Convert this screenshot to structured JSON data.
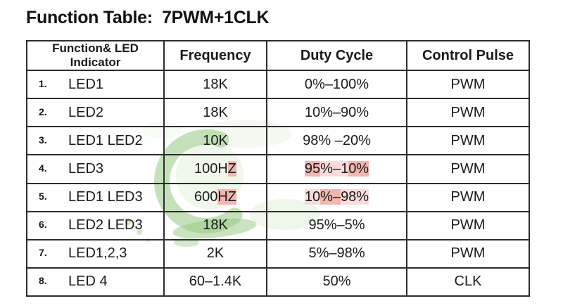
{
  "title": "Function Table:  7PWM+1CLK",
  "table": {
    "headers": [
      "Function& LED Indicator",
      "Frequency",
      "Duty Cycle",
      "Control Pulse"
    ],
    "rows": [
      {
        "num": "1.",
        "function": "LED1",
        "frequency": "18K",
        "duty": "0%–100%",
        "pulse": "PWM"
      },
      {
        "num": "2.",
        "function": "LED2",
        "frequency": "18K",
        "duty": "10%–90%",
        "pulse": "PWM"
      },
      {
        "num": "3.",
        "function": "LED1 LED2",
        "frequency": "10K",
        "duty": "98% –20%",
        "pulse": "PWM"
      },
      {
        "num": "4.",
        "function": "LED3",
        "frequency": [
          {
            "t": "100H"
          },
          {
            "t": "Z",
            "c": "hl"
          }
        ],
        "duty": [
          {
            "t": "95",
            "c": "hl"
          },
          {
            "t": "%–1",
            "c": "hll"
          },
          {
            "t": "0%",
            "c": "hl"
          }
        ],
        "pulse": "PWM"
      },
      {
        "num": "5.",
        "function": "LED1 LED3",
        "frequency": [
          {
            "t": "600"
          },
          {
            "t": "HZ",
            "c": "hl"
          }
        ],
        "duty": [
          {
            "t": "10",
            "c": "hll"
          },
          {
            "t": "%–",
            "c": "hl"
          },
          {
            "t": "98%",
            "c": "hll"
          }
        ],
        "pulse": "PWM"
      },
      {
        "num": "6.",
        "function": "LED2 LED3",
        "frequency": "18K",
        "duty": "95%–5%",
        "pulse": "PWM"
      },
      {
        "num": "7.",
        "function": "LED1,2,3",
        "frequency": "2K",
        "duty": "5%–98%",
        "pulse": "PWM"
      },
      {
        "num": "8.",
        "function": "LED 4",
        "frequency": "60–1.4K",
        "duty": "50%",
        "pulse": "CLK"
      }
    ]
  },
  "watermark": {
    "name": "green-leaf-watermark"
  },
  "colors": {
    "border": "#2d2d2d",
    "text": "#1b1b1b",
    "highlight_pink": "#f2b5b0",
    "highlight_pink_light": "#f8dcda",
    "watermark_green": "#96c981",
    "watermark_green_light": "#dcefd2"
  }
}
